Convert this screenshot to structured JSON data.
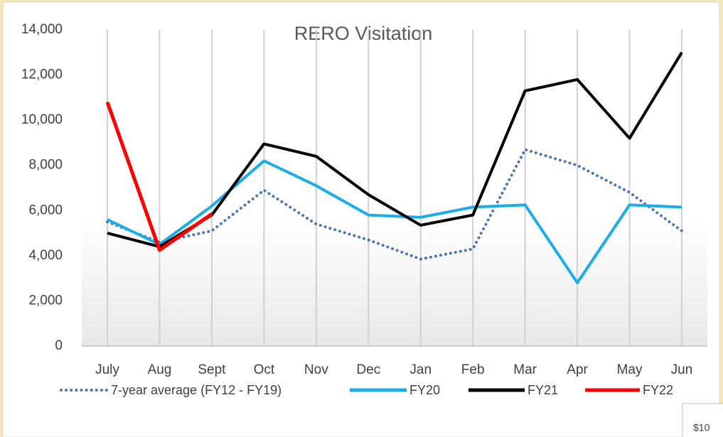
{
  "chart_data": {
    "type": "line",
    "title": "RERO Visitation",
    "categories": [
      "July",
      "Aug",
      "Sept",
      "Oct",
      "Nov",
      "Dec",
      "Jan",
      "Feb",
      "Mar",
      "Apr",
      "May",
      "Jun"
    ],
    "series": [
      {
        "name": "7-year average (FY12 - FY19)",
        "color": "#4a78b5",
        "dashed": true,
        "values": [
          5500,
          4600,
          5100,
          6900,
          5400,
          4700,
          3850,
          4300,
          8700,
          8000,
          6800,
          5100
        ]
      },
      {
        "name": "FY20",
        "color": "#1aaee8",
        "values": [
          5600,
          4500,
          6200,
          8200,
          7100,
          5800,
          5700,
          6150,
          6250,
          2800,
          6250,
          6150
        ]
      },
      {
        "name": "FY21",
        "color": "#000000",
        "values": [
          5000,
          4400,
          5800,
          8950,
          8400,
          6700,
          5350,
          5800,
          11300,
          11800,
          9200,
          13000
        ]
      },
      {
        "name": "FY22",
        "color": "#ff0000",
        "values": [
          10800,
          4250,
          5850,
          null,
          null,
          null,
          null,
          null,
          null,
          null,
          null,
          null
        ]
      }
    ],
    "ylim": [
      0,
      14000
    ],
    "yticks": [
      0,
      {
        "value": 2000,
        "label": "2,000"
      },
      {
        "value": 4000,
        "label": "4,000"
      },
      {
        "value": 6000,
        "label": "6,000"
      },
      {
        "value": 8000,
        "label": "8,000"
      },
      {
        "value": 10000,
        "label": "10,000"
      },
      {
        "value": 12000,
        "label": "12,000"
      },
      {
        "value": 14000,
        "label": "14,000"
      }
    ],
    "grid": "vertical",
    "legend": "bottom",
    "annotation": "$10"
  }
}
